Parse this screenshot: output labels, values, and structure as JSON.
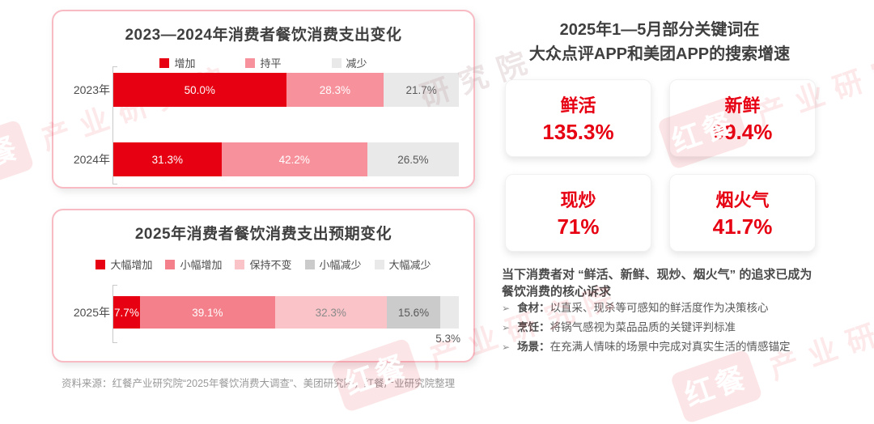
{
  "colors": {
    "accent_red": "#e60012",
    "panel_border": "#f8bac3",
    "title_text": "#3f3f3f",
    "body_text": "#595959",
    "source_text": "#999999"
  },
  "chart_data": [
    {
      "type": "bar",
      "orientation": "horizontal-stacked",
      "title": "2023—2024年消费者餐饮消费支出变化",
      "categories": [
        "2023年",
        "2024年"
      ],
      "series": [
        {
          "name": "增加",
          "color": "#e60012",
          "label_color": "#ffffff",
          "values": [
            50.0,
            31.3
          ]
        },
        {
          "name": "持平",
          "color": "#f7929c",
          "label_color": "#ffffff",
          "values": [
            28.3,
            42.2
          ]
        },
        {
          "name": "减少",
          "color": "#e9e9e9",
          "label_color": "#595959",
          "values": [
            21.7,
            26.5
          ]
        }
      ],
      "value_suffix": "%",
      "xlim": [
        0,
        100
      ],
      "legend_position": "top",
      "grid": false
    },
    {
      "type": "bar",
      "orientation": "horizontal-stacked",
      "title": "2025年消费者餐饮消费支出预期变化",
      "categories": [
        "2025年"
      ],
      "series": [
        {
          "name": "大幅增加",
          "color": "#e60012",
          "label_color": "#ffffff",
          "values": [
            7.7
          ]
        },
        {
          "name": "小幅增加",
          "color": "#f3808a",
          "label_color": "#ffffff",
          "values": [
            39.1
          ]
        },
        {
          "name": "保持不变",
          "color": "#f9c3c8",
          "label_color": "#8a8a8a",
          "values": [
            32.3
          ]
        },
        {
          "name": "小幅减少",
          "color": "#cbcbcb",
          "label_color": "#595959",
          "values": [
            15.6
          ]
        },
        {
          "name": "大幅减少",
          "color": "#e9e9e9",
          "label_color": "#595959",
          "label_below": true,
          "values": [
            5.3
          ]
        }
      ],
      "value_suffix": "%",
      "xlim": [
        0,
        100
      ],
      "legend_position": "top",
      "grid": false
    }
  ],
  "right": {
    "title_line1": "2025年1—5月部分关键词在",
    "title_line2": "大众点评APP和美团APP的搜索增速",
    "cards": [
      {
        "keyword": "鲜活",
        "value": "135.3%"
      },
      {
        "keyword": "新鲜",
        "value": "99.4%"
      },
      {
        "keyword": "现炒",
        "value": "71%"
      },
      {
        "keyword": "烟火气",
        "value": "41.7%"
      }
    ],
    "insight": "当下消费者对 “鲜活、新鲜、现炒、烟火气” 的追求已成为餐饮消费的核心诉求",
    "bullets": [
      {
        "marker": "➢",
        "label": "食材：",
        "text": "以直采、现杀等可感知的鲜活度作为决策核心"
      },
      {
        "marker": "➢",
        "label": "烹饪：",
        "text": "将锅气感视为菜品品质的关键评判标准"
      },
      {
        "marker": "➢",
        "label": "场景：",
        "text": "在充满人情味的场景中完成对真实生活的情感锚定"
      }
    ]
  },
  "footer": {
    "source": "资料来源：红餐产业研究院“2025年餐饮消费大调查”、美团研究院，红餐产业研究院整理"
  },
  "watermark": {
    "logo_text": "红餐",
    "text": "产业研究院",
    "text_partial": "研究院"
  }
}
